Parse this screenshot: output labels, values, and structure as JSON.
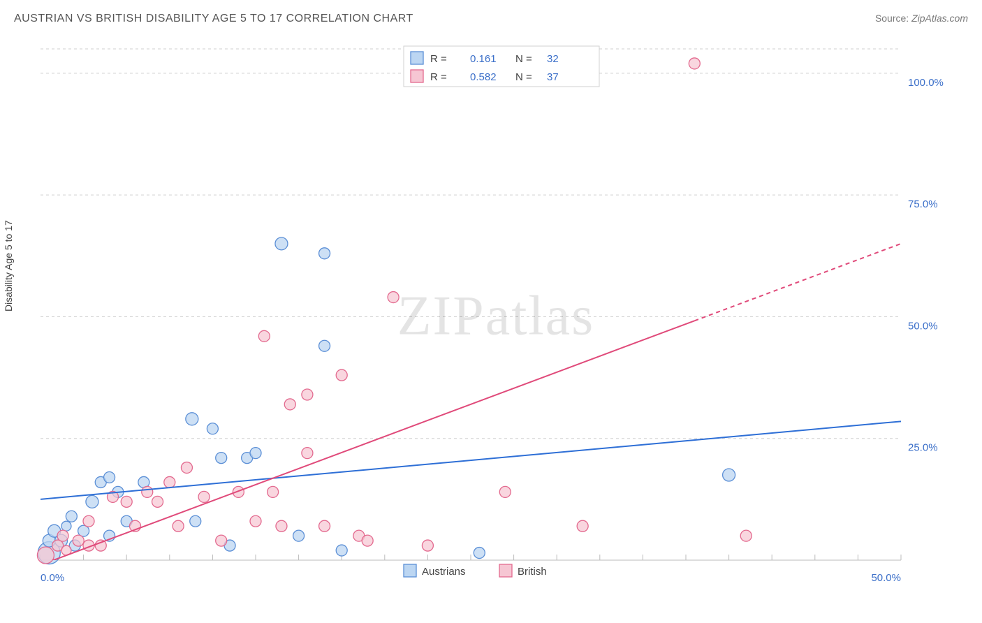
{
  "header": {
    "title": "AUSTRIAN VS BRITISH DISABILITY AGE 5 TO 17 CORRELATION CHART",
    "source_label": "Source:",
    "source_value": "ZipAtlas.com"
  },
  "watermark": {
    "text": "ZIPatlas"
  },
  "chart": {
    "type": "scatter",
    "y_axis_label": "Disability Age 5 to 17",
    "background_color": "#ffffff",
    "grid_color": "#cfcfcf",
    "tick_label_color": "#3b6fc9",
    "xlim": [
      0,
      50
    ],
    "ylim": [
      0,
      105
    ],
    "xtick_step": 2.5,
    "ytick_gridlines": [
      25,
      50,
      75,
      100,
      105
    ],
    "ytick_labels": [
      {
        "val": 25,
        "text": "25.0%"
      },
      {
        "val": 50,
        "text": "50.0%"
      },
      {
        "val": 75,
        "text": "75.0%"
      },
      {
        "val": 100,
        "text": "100.0%"
      }
    ],
    "xtick_labels": [
      {
        "val": 0,
        "text": "0.0%"
      },
      {
        "val": 50,
        "text": "50.0%"
      }
    ],
    "series": [
      {
        "name": "Austrians",
        "marker_fill": "#bcd6f2",
        "marker_stroke": "#5b8fd6",
        "marker_opacity": 0.75,
        "marker_r_default": 9,
        "trend": {
          "color": "#2e6fd6",
          "width": 2,
          "x1": 0,
          "y1": 12.5,
          "x2": 50,
          "y2": 28.5,
          "dash_from_x": null
        },
        "points": [
          {
            "x": 0.5,
            "y": 1.5,
            "r": 16
          },
          {
            "x": 0.5,
            "y": 4,
            "r": 9
          },
          {
            "x": 0.8,
            "y": 6,
            "r": 9
          },
          {
            "x": 1.2,
            "y": 4,
            "r": 9
          },
          {
            "x": 1.5,
            "y": 7,
            "r": 7
          },
          {
            "x": 2.0,
            "y": 3,
            "r": 8
          },
          {
            "x": 1.8,
            "y": 9,
            "r": 8
          },
          {
            "x": 2.5,
            "y": 6,
            "r": 8
          },
          {
            "x": 3.0,
            "y": 12,
            "r": 9
          },
          {
            "x": 3.5,
            "y": 16,
            "r": 8
          },
          {
            "x": 4.0,
            "y": 17,
            "r": 8
          },
          {
            "x": 4.0,
            "y": 5,
            "r": 8
          },
          {
            "x": 4.5,
            "y": 14,
            "r": 8
          },
          {
            "x": 5.0,
            "y": 8,
            "r": 8
          },
          {
            "x": 6.0,
            "y": 16,
            "r": 8
          },
          {
            "x": 8.8,
            "y": 29,
            "r": 9
          },
          {
            "x": 9.0,
            "y": 8,
            "r": 8
          },
          {
            "x": 10.0,
            "y": 27,
            "r": 8
          },
          {
            "x": 10.5,
            "y": 21,
            "r": 8
          },
          {
            "x": 11.0,
            "y": 3,
            "r": 8
          },
          {
            "x": 12.0,
            "y": 21,
            "r": 8
          },
          {
            "x": 12.5,
            "y": 22,
            "r": 8
          },
          {
            "x": 14.0,
            "y": 65,
            "r": 9
          },
          {
            "x": 15.0,
            "y": 5,
            "r": 8
          },
          {
            "x": 16.5,
            "y": 44,
            "r": 8
          },
          {
            "x": 16.5,
            "y": 63,
            "r": 8
          },
          {
            "x": 17.5,
            "y": 2,
            "r": 8
          },
          {
            "x": 25.5,
            "y": 1.5,
            "r": 8
          },
          {
            "x": 40.0,
            "y": 17.5,
            "r": 9
          }
        ]
      },
      {
        "name": "British",
        "marker_fill": "#f6c6d3",
        "marker_stroke": "#e36a8f",
        "marker_opacity": 0.72,
        "marker_r_default": 9,
        "trend": {
          "color": "#e04a7a",
          "width": 2,
          "x1": 0,
          "y1": -1,
          "x2": 50,
          "y2": 65,
          "dash_from_x": 38
        },
        "points": [
          {
            "x": 0.3,
            "y": 1,
            "r": 12
          },
          {
            "x": 1.0,
            "y": 3,
            "r": 8
          },
          {
            "x": 1.3,
            "y": 5,
            "r": 8
          },
          {
            "x": 1.5,
            "y": 2,
            "r": 7
          },
          {
            "x": 2.2,
            "y": 4,
            "r": 8
          },
          {
            "x": 2.8,
            "y": 3,
            "r": 8
          },
          {
            "x": 2.8,
            "y": 8,
            "r": 8
          },
          {
            "x": 3.5,
            "y": 3,
            "r": 8
          },
          {
            "x": 4.2,
            "y": 13,
            "r": 8
          },
          {
            "x": 5.0,
            "y": 12,
            "r": 8
          },
          {
            "x": 5.5,
            "y": 7,
            "r": 8
          },
          {
            "x": 6.2,
            "y": 14,
            "r": 8
          },
          {
            "x": 6.8,
            "y": 12,
            "r": 8
          },
          {
            "x": 7.5,
            "y": 16,
            "r": 8
          },
          {
            "x": 8.0,
            "y": 7,
            "r": 8
          },
          {
            "x": 8.5,
            "y": 19,
            "r": 8
          },
          {
            "x": 9.5,
            "y": 13,
            "r": 8
          },
          {
            "x": 10.5,
            "y": 4,
            "r": 8
          },
          {
            "x": 11.5,
            "y": 14,
            "r": 8
          },
          {
            "x": 12.5,
            "y": 8,
            "r": 8
          },
          {
            "x": 13.0,
            "y": 46,
            "r": 8
          },
          {
            "x": 13.5,
            "y": 14,
            "r": 8
          },
          {
            "x": 14.0,
            "y": 7,
            "r": 8
          },
          {
            "x": 14.5,
            "y": 32,
            "r": 8
          },
          {
            "x": 15.5,
            "y": 22,
            "r": 8
          },
          {
            "x": 15.5,
            "y": 34,
            "r": 8
          },
          {
            "x": 16.5,
            "y": 7,
            "r": 8
          },
          {
            "x": 17.5,
            "y": 38,
            "r": 8
          },
          {
            "x": 18.5,
            "y": 5,
            "r": 8
          },
          {
            "x": 19.0,
            "y": 4,
            "r": 8
          },
          {
            "x": 20.5,
            "y": 54,
            "r": 8
          },
          {
            "x": 22.5,
            "y": 3,
            "r": 8
          },
          {
            "x": 27.0,
            "y": 14,
            "r": 8
          },
          {
            "x": 31.5,
            "y": 7,
            "r": 8
          },
          {
            "x": 38.0,
            "y": 102,
            "r": 8
          },
          {
            "x": 41.0,
            "y": 5,
            "r": 8
          }
        ]
      }
    ],
    "legend_top": {
      "rows": [
        {
          "swatch_fill": "#bcd6f2",
          "swatch_stroke": "#5b8fd6",
          "r_label": "R =",
          "r_value": "0.161",
          "n_label": "N =",
          "n_value": "32"
        },
        {
          "swatch_fill": "#f6c6d3",
          "swatch_stroke": "#e36a8f",
          "r_label": "R =",
          "r_value": "0.582",
          "n_label": "N =",
          "n_value": "37"
        }
      ]
    },
    "legend_bottom": {
      "items": [
        {
          "swatch_fill": "#bcd6f2",
          "swatch_stroke": "#5b8fd6",
          "label": "Austrians"
        },
        {
          "swatch_fill": "#f6c6d3",
          "swatch_stroke": "#e36a8f",
          "label": "British"
        }
      ]
    }
  }
}
